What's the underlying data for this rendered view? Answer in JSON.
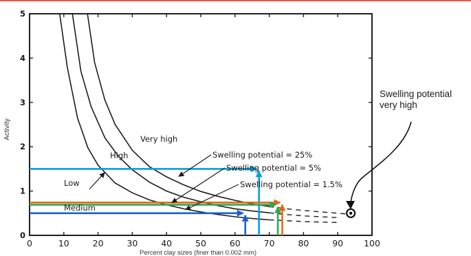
{
  "chart_data": {
    "type": "line",
    "xlabel": "Percent clay sizes (finer than 0.002 mm)",
    "ylabel": "Activity",
    "xlim": [
      0,
      100
    ],
    "ylim": [
      0,
      5
    ],
    "x_ticks": [
      "0",
      "10",
      "20",
      "30",
      "40",
      "50",
      "60",
      "70",
      "80",
      "90",
      "100"
    ],
    "y_ticks": [
      "0",
      "1",
      "2",
      "3",
      "4",
      "5"
    ],
    "grid": false,
    "region_labels": [
      "Very high",
      "High",
      "Low",
      "Medium"
    ],
    "series": [
      {
        "name": "Swelling potential = 25%",
        "points": [
          [
            16.9,
            5.0
          ],
          [
            19,
            3.9
          ],
          [
            22,
            3.05
          ],
          [
            25,
            2.5
          ],
          [
            30,
            1.92
          ],
          [
            35,
            1.55
          ],
          [
            40,
            1.32
          ],
          [
            45,
            1.14
          ],
          [
            50,
            0.99
          ],
          [
            55,
            0.88
          ],
          [
            60,
            0.79
          ],
          [
            65,
            0.71
          ],
          [
            70,
            0.65
          ],
          [
            75,
            0.6
          ],
          [
            80,
            0.56
          ],
          [
            85,
            0.53
          ],
          [
            90,
            0.5
          ],
          [
            93,
            0.48
          ]
        ]
      },
      {
        "name": "Swelling potential = 5%",
        "points": [
          [
            12.5,
            5.0
          ],
          [
            15,
            3.7
          ],
          [
            18,
            2.9
          ],
          [
            22,
            2.2
          ],
          [
            26,
            1.78
          ],
          [
            30,
            1.48
          ],
          [
            35,
            1.2
          ],
          [
            40,
            1.0
          ],
          [
            45,
            0.86
          ],
          [
            50,
            0.76
          ],
          [
            55,
            0.67
          ],
          [
            60,
            0.6
          ],
          [
            65,
            0.55
          ],
          [
            70,
            0.51
          ],
          [
            75,
            0.47
          ],
          [
            80,
            0.44
          ],
          [
            85,
            0.42
          ],
          [
            90,
            0.4
          ]
        ]
      },
      {
        "name": "Swelling potential = 1.5%",
        "points": [
          [
            8.8,
            5.0
          ],
          [
            11,
            3.8
          ],
          [
            14,
            2.65
          ],
          [
            17,
            1.98
          ],
          [
            20,
            1.58
          ],
          [
            25,
            1.18
          ],
          [
            30,
            0.96
          ],
          [
            35,
            0.8
          ],
          [
            40,
            0.69
          ],
          [
            45,
            0.6
          ],
          [
            50,
            0.53
          ],
          [
            55,
            0.47
          ],
          [
            60,
            0.42
          ],
          [
            65,
            0.38
          ],
          [
            70,
            0.35
          ],
          [
            75,
            0.33
          ],
          [
            80,
            0.31
          ],
          [
            85,
            0.3
          ],
          [
            90,
            0.29
          ]
        ]
      }
    ],
    "curve_labels": [
      {
        "text": "Swelling potential = 25%",
        "target": [
          43,
          1.3
        ]
      },
      {
        "text": "Swelling potential = 5%",
        "target": [
          41,
          0.71
        ]
      },
      {
        "text": "Swelling potential = 1.5%",
        "target": [
          45,
          0.55
        ]
      }
    ],
    "reference_lines": [
      {
        "color": "#00a0e0",
        "y": 1.5,
        "x": 67
      },
      {
        "color": "#e06a1a",
        "y": 0.74,
        "x": 73.8
      },
      {
        "color": "#2fa84f",
        "y": 0.69,
        "x": 72.5
      },
      {
        "color": "#1a5fd0",
        "y": 0.5,
        "x": 63
      }
    ],
    "marker": {
      "x": 93.8,
      "y": 0.5
    },
    "annotation": {
      "text": "Swelling potential very high"
    }
  }
}
